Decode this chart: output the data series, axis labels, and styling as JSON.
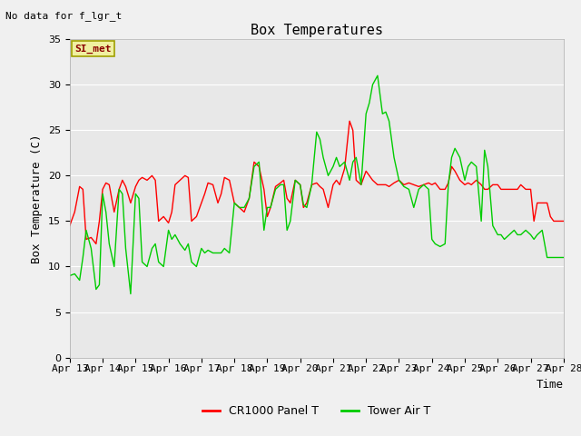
{
  "title": "Box Temperatures",
  "ylabel": "Box Temperature (C)",
  "xlabel": "Time",
  "top_left_text": "No data for f_lgr_t",
  "annotation_box": "SI_met",
  "ylim": [
    0,
    35
  ],
  "yticks": [
    0,
    5,
    10,
    15,
    20,
    25,
    30,
    35
  ],
  "x_labels": [
    "Apr 13",
    "Apr 14",
    "Apr 15",
    "Apr 16",
    "Apr 17",
    "Apr 18",
    "Apr 19",
    "Apr 20",
    "Apr 21",
    "Apr 22",
    "Apr 23",
    "Apr 24",
    "Apr 25",
    "Apr 26",
    "Apr 27",
    "Apr 28"
  ],
  "background_color": "#f0f0f0",
  "plot_bg_color": "#e8e8e8",
  "grid_color": "#ffffff",
  "legend_entries": [
    "CR1000 Panel T",
    "Tower Air T"
  ],
  "cr1000_color": "#ff0000",
  "tower_color": "#00cc00",
  "title_fontsize": 11,
  "label_fontsize": 9,
  "tick_fontsize": 8,
  "annot_fontsize": 8,
  "nodata_fontsize": 8,
  "legend_fontsize": 9,
  "cr1000_x": [
    0,
    0.15,
    0.3,
    0.4,
    0.5,
    0.65,
    0.8,
    0.9,
    1.0,
    1.1,
    1.2,
    1.35,
    1.5,
    1.6,
    1.7,
    1.85,
    2.0,
    2.1,
    2.2,
    2.35,
    2.5,
    2.6,
    2.7,
    2.85,
    3.0,
    3.1,
    3.2,
    3.35,
    3.5,
    3.6,
    3.7,
    3.85,
    4.0,
    4.1,
    4.2,
    4.35,
    4.5,
    4.6,
    4.7,
    4.85,
    5.0,
    5.15,
    5.3,
    5.45,
    5.6,
    5.75,
    5.9,
    6.0,
    6.1,
    6.25,
    6.4,
    6.5,
    6.6,
    6.7,
    6.85,
    7.0,
    7.1,
    7.2,
    7.35,
    7.5,
    7.6,
    7.7,
    7.85,
    8.0,
    8.1,
    8.2,
    8.35,
    8.5,
    8.6,
    8.7,
    8.85,
    9.0,
    9.1,
    9.2,
    9.35,
    9.5,
    9.6,
    9.7,
    9.85,
    10.0,
    10.15,
    10.3,
    10.45,
    10.6,
    10.75,
    10.9,
    11.0,
    11.1,
    11.25,
    11.4,
    11.5,
    11.6,
    11.7,
    11.85,
    12.0,
    12.1,
    12.2,
    12.35,
    12.5,
    12.6,
    12.7,
    12.85,
    13.0,
    13.1,
    13.2,
    13.35,
    13.5,
    13.6,
    13.7,
    13.85,
    14.0,
    14.1,
    14.2,
    14.35,
    14.5,
    14.6,
    14.7,
    14.85,
    15.0
  ],
  "cr1000_y": [
    14.5,
    16.0,
    18.8,
    18.5,
    13.0,
    13.2,
    12.5,
    15.0,
    18.5,
    19.2,
    19.0,
    16.0,
    18.5,
    19.5,
    18.8,
    17.0,
    18.8,
    19.5,
    19.8,
    19.5,
    20.0,
    19.5,
    15.0,
    15.5,
    14.8,
    16.0,
    19.0,
    19.5,
    20.0,
    19.8,
    15.0,
    15.5,
    17.0,
    18.0,
    19.2,
    19.0,
    17.0,
    18.0,
    19.8,
    19.5,
    17.0,
    16.5,
    16.0,
    17.5,
    21.5,
    21.0,
    18.5,
    15.5,
    16.5,
    18.8,
    19.2,
    19.5,
    17.5,
    17.0,
    19.5,
    19.0,
    16.5,
    17.0,
    19.0,
    19.2,
    18.8,
    18.5,
    16.5,
    19.0,
    19.5,
    19.0,
    20.8,
    26.0,
    25.0,
    19.5,
    19.0,
    20.5,
    20.0,
    19.5,
    19.0,
    19.0,
    19.0,
    18.8,
    19.2,
    19.5,
    19.0,
    19.2,
    19.0,
    18.8,
    19.0,
    19.2,
    19.0,
    19.2,
    18.5,
    18.5,
    19.2,
    21.0,
    20.5,
    19.5,
    19.0,
    19.2,
    19.0,
    19.5,
    19.0,
    18.5,
    18.5,
    19.0,
    19.0,
    18.5,
    18.5,
    18.5,
    18.5,
    18.5,
    19.0,
    18.5,
    18.5,
    15.0,
    17.0,
    17.0,
    17.0,
    15.5,
    15.0,
    15.0,
    15.0
  ],
  "tower_x": [
    0,
    0.15,
    0.3,
    0.4,
    0.5,
    0.65,
    0.8,
    0.9,
    1.0,
    1.1,
    1.2,
    1.35,
    1.5,
    1.6,
    1.7,
    1.85,
    2.0,
    2.1,
    2.2,
    2.35,
    2.5,
    2.6,
    2.7,
    2.85,
    3.0,
    3.1,
    3.2,
    3.35,
    3.5,
    3.6,
    3.7,
    3.85,
    4.0,
    4.1,
    4.2,
    4.35,
    4.5,
    4.6,
    4.7,
    4.85,
    5.0,
    5.15,
    5.3,
    5.45,
    5.6,
    5.75,
    5.9,
    6.0,
    6.1,
    6.25,
    6.4,
    6.5,
    6.6,
    6.7,
    6.85,
    7.0,
    7.1,
    7.2,
    7.35,
    7.5,
    7.6,
    7.7,
    7.85,
    8.0,
    8.1,
    8.2,
    8.35,
    8.5,
    8.6,
    8.7,
    8.85,
    9.0,
    9.1,
    9.2,
    9.35,
    9.5,
    9.6,
    9.7,
    9.85,
    10.0,
    10.15,
    10.3,
    10.45,
    10.6,
    10.75,
    10.9,
    11.0,
    11.1,
    11.25,
    11.4,
    11.5,
    11.6,
    11.7,
    11.85,
    12.0,
    12.1,
    12.2,
    12.35,
    12.5,
    12.6,
    12.7,
    12.85,
    13.0,
    13.1,
    13.2,
    13.35,
    13.5,
    13.6,
    13.7,
    13.85,
    14.0,
    14.1,
    14.2,
    14.35,
    14.5,
    14.6,
    14.7,
    14.85,
    15.0
  ],
  "tower_y": [
    9.0,
    9.2,
    8.5,
    11.0,
    14.0,
    12.0,
    7.5,
    8.0,
    18.0,
    16.0,
    12.5,
    10.0,
    18.5,
    18.0,
    12.0,
    7.0,
    18.0,
    17.5,
    10.5,
    10.0,
    12.0,
    12.5,
    10.5,
    10.0,
    14.0,
    13.0,
    13.5,
    12.5,
    11.8,
    12.5,
    10.5,
    10.0,
    12.0,
    11.5,
    11.8,
    11.5,
    11.5,
    11.5,
    12.0,
    11.5,
    17.0,
    16.5,
    16.5,
    17.5,
    21.0,
    21.5,
    14.0,
    16.5,
    16.5,
    18.5,
    19.0,
    19.0,
    14.0,
    15.0,
    19.5,
    19.0,
    16.8,
    16.5,
    19.0,
    24.8,
    24.0,
    22.0,
    20.0,
    21.0,
    22.0,
    21.0,
    21.5,
    19.5,
    21.5,
    22.0,
    19.0,
    26.8,
    28.0,
    30.0,
    31.0,
    26.8,
    27.0,
    26.0,
    22.0,
    19.5,
    18.8,
    18.5,
    16.5,
    18.5,
    19.0,
    18.5,
    13.0,
    12.5,
    12.2,
    12.5,
    19.0,
    22.0,
    23.0,
    22.0,
    19.5,
    21.0,
    21.5,
    21.0,
    15.0,
    22.8,
    21.0,
    14.5,
    13.5,
    13.5,
    13.0,
    13.5,
    14.0,
    13.5,
    13.5,
    14.0,
    13.5,
    13.0,
    13.5,
    14.0,
    11.0,
    11.0,
    11.0,
    11.0,
    11.0
  ]
}
